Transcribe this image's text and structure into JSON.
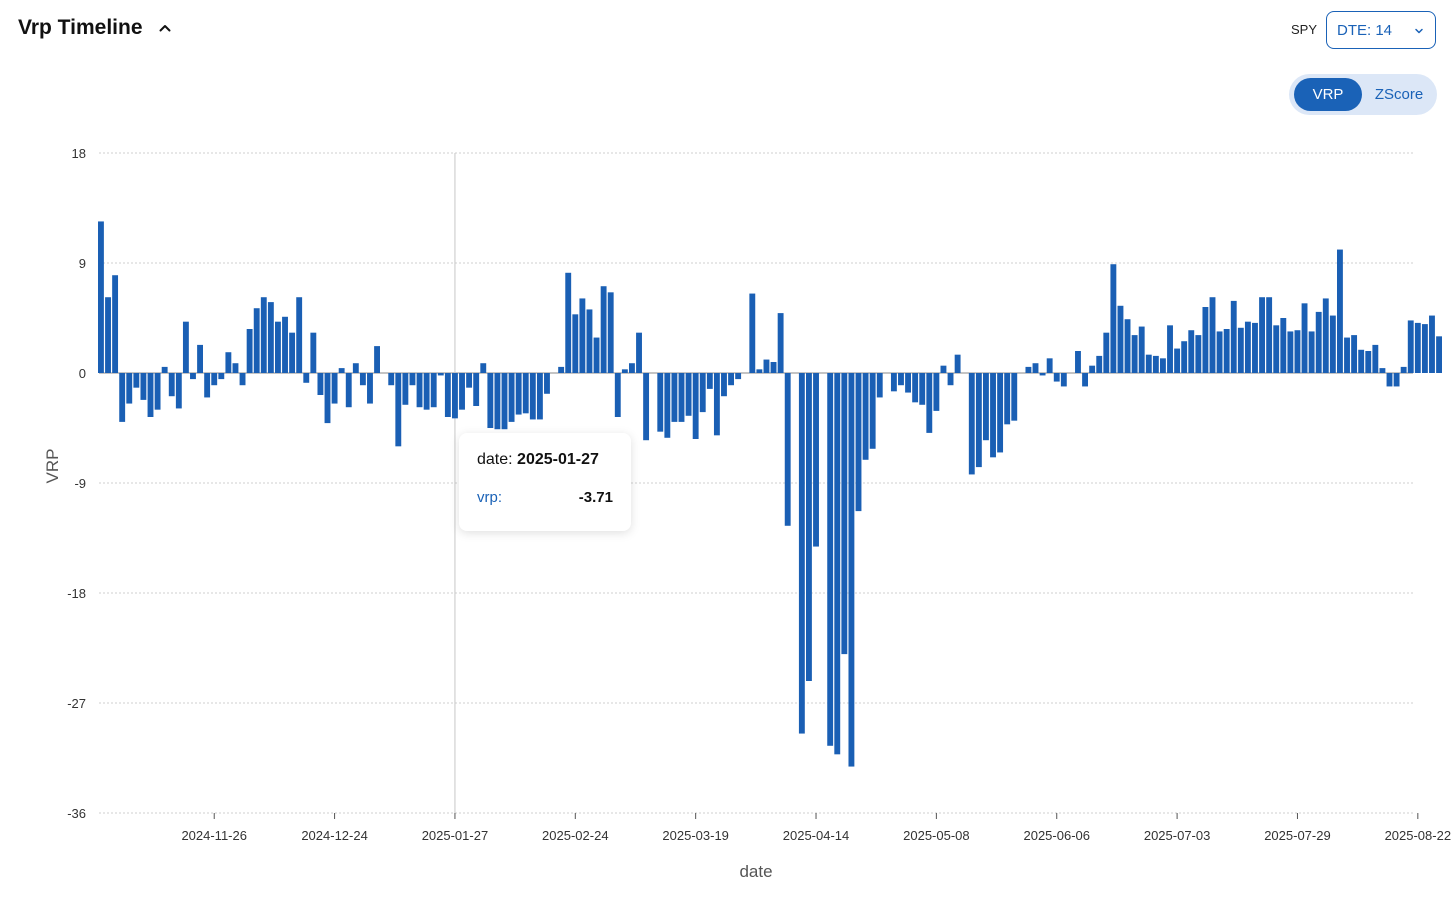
{
  "header": {
    "title": "Vrp Timeline",
    "symbol": "SPY",
    "dte_selected": "DTE: 14"
  },
  "mode_toggle": {
    "options": [
      "VRP",
      "ZScore"
    ],
    "selected": "VRP"
  },
  "tooltip": {
    "date_label": "date:",
    "date_value": "2025-01-27",
    "series_label": "vrp:",
    "series_value": "-3.71"
  },
  "colors": {
    "bar": "#1a5fb4",
    "accent": "#1a62b7",
    "grid": "#cfcfcf",
    "axis_text": "#333333"
  },
  "chart_data": {
    "type": "bar",
    "xlabel": "date",
    "ylabel": "VRP",
    "ylim": [
      -36,
      18
    ],
    "yticks": [
      18,
      9,
      0,
      -9,
      -18,
      -27,
      -36
    ],
    "xticks": [
      "2024-11-26",
      "2024-12-24",
      "2025-01-27",
      "2025-02-24",
      "2025-03-19",
      "2025-04-14",
      "2025-05-08",
      "2025-06-06",
      "2025-07-03",
      "2025-07-29",
      "2025-08-22"
    ],
    "xtick_bar_index": [
      16,
      33,
      50,
      67,
      84,
      101,
      118,
      135,
      152,
      169,
      186
    ],
    "highlight_index": 50,
    "grid": true,
    "values": [
      12.4,
      6.2,
      8.0,
      -4.0,
      -2.5,
      -1.2,
      -2.2,
      -3.6,
      -3.0,
      0.5,
      -1.9,
      -2.9,
      4.2,
      -0.5,
      2.3,
      -2.0,
      -1.0,
      -0.5,
      1.7,
      0.8,
      -1.0,
      3.6,
      5.3,
      6.2,
      5.8,
      4.2,
      4.6,
      3.3,
      6.2,
      -0.8,
      3.3,
      -1.8,
      -4.1,
      -2.5,
      0.4,
      -2.8,
      0.8,
      -1.0,
      -2.5,
      2.2,
      0.0,
      -1.0,
      -6.0,
      -2.6,
      -1.0,
      -2.8,
      -3.0,
      -2.8,
      -0.2,
      -3.6,
      -3.71,
      -3.0,
      -1.2,
      -2.7,
      0.8,
      -4.5,
      -4.6,
      -4.6,
      -4.0,
      -3.4,
      -3.3,
      -3.8,
      -3.8,
      -1.7,
      0.0,
      0.5,
      8.2,
      4.8,
      6.1,
      5.2,
      2.9,
      7.1,
      6.6,
      -3.6,
      0.3,
      0.8,
      3.3,
      -5.5,
      0.0,
      -4.8,
      -5.3,
      -4.0,
      -4.0,
      -3.5,
      -5.4,
      -3.2,
      -1.3,
      -5.1,
      -1.9,
      -1.0,
      -0.5,
      0.0,
      6.5,
      0.3,
      1.1,
      0.9,
      4.9,
      -12.5,
      0.0,
      -29.5,
      -25.2,
      -14.2,
      0.0,
      -30.5,
      -31.2,
      -23.0,
      -32.2,
      -11.3,
      -7.1,
      -6.2,
      -2.0,
      0.0,
      -1.5,
      -1.0,
      -1.6,
      -2.4,
      -2.6,
      -4.9,
      -3.1,
      0.6,
      -1.0,
      1.5,
      0.0,
      -8.3,
      -7.7,
      -5.5,
      -6.9,
      -6.5,
      -4.2,
      -3.9,
      0.0,
      0.5,
      0.8,
      -0.2,
      1.2,
      -0.7,
      -1.1,
      0.0,
      1.8,
      -1.1,
      0.6,
      1.4,
      3.3,
      8.9,
      5.5,
      4.4,
      3.1,
      3.8,
      1.5,
      1.4,
      1.2,
      3.9,
      2.0,
      2.6,
      3.5,
      3.1,
      5.4,
      6.2,
      3.4,
      3.6,
      5.9,
      3.7,
      4.2,
      4.1,
      6.2,
      6.2,
      3.9,
      4.5,
      3.4,
      3.5,
      5.7,
      3.4,
      5.0,
      6.1,
      4.7,
      10.1,
      2.9,
      3.1,
      1.9,
      1.8,
      2.3,
      0.4,
      -1.1,
      -1.1,
      0.5,
      4.3,
      4.1,
      4.0,
      4.7,
      3.0
    ]
  }
}
